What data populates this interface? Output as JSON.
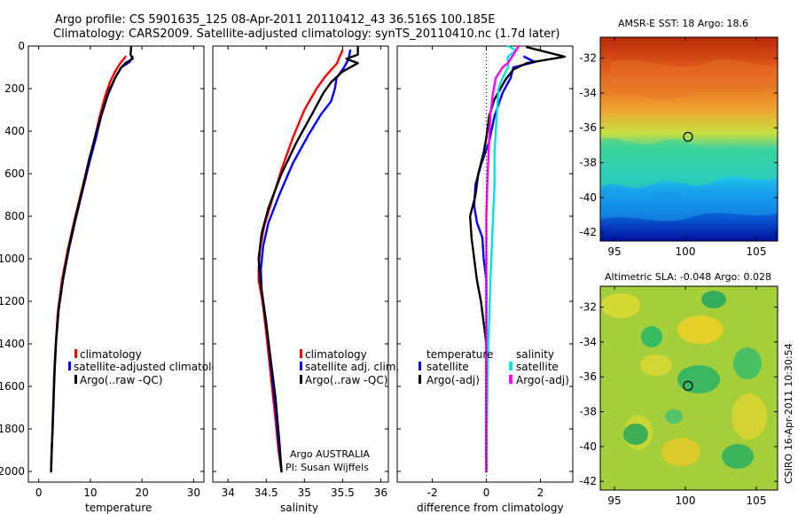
{
  "header": {
    "line1": "Argo profile: CS 5901635_125 08-Apr-2011 20110412_43 36.516S 100.185E",
    "line2": "Climatology: CARS2009. Satellite-adjusted climatology: synTS_20110410.nc (1.7d later)"
  },
  "credit": {
    "text": "CSIRO 16-Apr-2011 10:30:54"
  },
  "colors": {
    "climatology": "#ff0000",
    "satellite": "#0000ff",
    "argo": "#000000",
    "sal_satellite": "#00e5e5",
    "sal_argo": "#ff00ff"
  },
  "chart_data": [
    {
      "type": "line",
      "xlabel": "temperature",
      "xlim": [
        -2,
        32
      ],
      "ylim": [
        0,
        2050
      ],
      "y_reversed": true,
      "xticks": [
        0,
        10,
        20,
        30
      ],
      "yticks": [
        0,
        200,
        400,
        600,
        800,
        1000,
        1200,
        1400,
        1600,
        1800,
        2000
      ],
      "legend": [
        "climatology",
        "satellite-adjusted climatology",
        "Argo(..raw -QC)"
      ],
      "series": [
        {
          "name": "climatology",
          "color": "#ff0000",
          "points": [
            [
              16.8,
              50
            ],
            [
              15.8,
              80
            ],
            [
              14.8,
              120
            ],
            [
              13.8,
              170
            ],
            [
              12.8,
              240
            ],
            [
              11.8,
              330
            ],
            [
              10.8,
              440
            ],
            [
              9.5,
              560
            ],
            [
              8.3,
              680
            ],
            [
              6.9,
              820
            ],
            [
              5.6,
              960
            ],
            [
              4.5,
              1100
            ],
            [
              3.7,
              1250
            ],
            [
              3.3,
              1400
            ],
            [
              3.0,
              1550
            ],
            [
              2.8,
              1700
            ],
            [
              2.6,
              1850
            ],
            [
              2.4,
              2000
            ]
          ]
        },
        {
          "name": "satellite-adjusted climatology",
          "color": "#0000ff",
          "points": [
            [
              18.2,
              50
            ],
            [
              17.6,
              75
            ],
            [
              16.0,
              100
            ],
            [
              14.8,
              150
            ],
            [
              13.4,
              230
            ],
            [
              12.1,
              330
            ],
            [
              11.0,
              440
            ],
            [
              9.7,
              560
            ],
            [
              8.5,
              680
            ],
            [
              7.1,
              820
            ],
            [
              5.8,
              960
            ],
            [
              4.7,
              1100
            ],
            [
              3.8,
              1250
            ],
            [
              3.3,
              1400
            ],
            [
              3.0,
              1550
            ],
            [
              2.8,
              1700
            ],
            [
              2.6,
              1850
            ],
            [
              2.4,
              2000
            ]
          ]
        },
        {
          "name": "Argo(..raw -QC)",
          "color": "#000000",
          "points": [
            [
              17.9,
              5
            ],
            [
              17.8,
              40
            ],
            [
              18.2,
              60
            ],
            [
              16.8,
              80
            ],
            [
              16.0,
              100
            ],
            [
              15.0,
              140
            ],
            [
              13.6,
              210
            ],
            [
              12.4,
              300
            ],
            [
              11.1,
              410
            ],
            [
              9.8,
              530
            ],
            [
              8.6,
              660
            ],
            [
              7.2,
              800
            ],
            [
              5.9,
              940
            ],
            [
              4.8,
              1080
            ],
            [
              3.9,
              1230
            ],
            [
              3.4,
              1380
            ],
            [
              3.1,
              1520
            ],
            [
              2.9,
              1660
            ],
            [
              2.7,
              1800
            ],
            [
              2.5,
              1900
            ],
            [
              2.4,
              2000
            ]
          ]
        }
      ]
    },
    {
      "type": "line",
      "xlabel": "salinity",
      "xlim": [
        33.8,
        36.1
      ],
      "ylim": [
        0,
        2050
      ],
      "y_reversed": true,
      "xticks": [
        34,
        34.5,
        35,
        35.5,
        36
      ],
      "legend": [
        "climatology",
        "satellite adj. clim.",
        "Argo(..raw -QC)"
      ],
      "annotation": [
        "Argo AUSTRALIA",
        "PI: Susan Wijffels"
      ],
      "series": [
        {
          "name": "climatology",
          "color": "#ff0000",
          "points": [
            [
              35.5,
              20
            ],
            [
              35.45,
              60
            ],
            [
              35.43,
              80
            ],
            [
              35.28,
              140
            ],
            [
              35.16,
              200
            ],
            [
              35.0,
              300
            ],
            [
              34.85,
              430
            ],
            [
              34.7,
              580
            ],
            [
              34.58,
              720
            ],
            [
              34.47,
              850
            ],
            [
              34.42,
              950
            ],
            [
              34.4,
              1050
            ],
            [
              34.4,
              1100
            ],
            [
              34.45,
              1200
            ],
            [
              34.5,
              1350
            ],
            [
              34.56,
              1550
            ],
            [
              34.62,
              1750
            ],
            [
              34.66,
              1900
            ],
            [
              34.7,
              2000
            ]
          ]
        },
        {
          "name": "satellite adj. clim.",
          "color": "#0000ff",
          "points": [
            [
              35.6,
              20
            ],
            [
              35.58,
              60
            ],
            [
              35.52,
              100
            ],
            [
              35.42,
              150
            ],
            [
              35.4,
              200
            ],
            [
              35.35,
              260
            ],
            [
              35.22,
              320
            ],
            [
              35.05,
              420
            ],
            [
              34.85,
              550
            ],
            [
              34.67,
              700
            ],
            [
              34.53,
              830
            ],
            [
              34.46,
              940
            ],
            [
              34.43,
              1050
            ],
            [
              34.44,
              1150
            ],
            [
              34.5,
              1300
            ],
            [
              34.56,
              1500
            ],
            [
              34.62,
              1700
            ],
            [
              34.67,
              1900
            ],
            [
              34.7,
              2000
            ]
          ]
        },
        {
          "name": "Argo(..raw -QC)",
          "color": "#000000",
          "points": [
            [
              35.7,
              5
            ],
            [
              35.7,
              40
            ],
            [
              35.55,
              60
            ],
            [
              35.7,
              80
            ],
            [
              35.5,
              120
            ],
            [
              35.35,
              170
            ],
            [
              35.25,
              220
            ],
            [
              35.1,
              320
            ],
            [
              34.9,
              450
            ],
            [
              34.7,
              600
            ],
            [
              34.53,
              760
            ],
            [
              34.44,
              880
            ],
            [
              34.4,
              1000
            ],
            [
              34.42,
              1100
            ],
            [
              34.48,
              1250
            ],
            [
              34.55,
              1450
            ],
            [
              34.62,
              1650
            ],
            [
              34.67,
              1850
            ],
            [
              34.7,
              2000
            ]
          ]
        }
      ]
    },
    {
      "type": "line",
      "xlabel": "difference from climatology",
      "xlim": [
        -3.3,
        3.2
      ],
      "ylim": [
        0,
        2050
      ],
      "y_reversed": true,
      "xticks": [
        -2,
        0,
        2
      ],
      "legend_title_left": "temperature",
      "legend_title_right": "salinity",
      "legend": [
        "satellite",
        "Argo(-adj)",
        "satellite",
        "Argo(-adj)"
      ],
      "series": [
        {
          "name": "satellite",
          "group": "temperature",
          "color": "#0000ff",
          "points": [
            [
              1.4,
              50
            ],
            [
              1.8,
              75
            ],
            [
              1.0,
              100
            ],
            [
              0.9,
              150
            ],
            [
              0.6,
              220
            ],
            [
              0.3,
              330
            ],
            [
              0.1,
              450
            ],
            [
              -0.2,
              560
            ],
            [
              -0.4,
              650
            ],
            [
              -0.45,
              750
            ],
            [
              -0.35,
              830
            ],
            [
              -0.15,
              900
            ],
            [
              -0.1,
              1000
            ],
            [
              0,
              1100
            ],
            [
              0,
              1300
            ],
            [
              0,
              1500
            ],
            [
              0,
              1800
            ],
            [
              0,
              2000
            ]
          ]
        },
        {
          "name": "Argo(-adj)",
          "group": "temperature",
          "color": "#000000",
          "points": [
            [
              1.5,
              5
            ],
            [
              2.9,
              50
            ],
            [
              1.5,
              80
            ],
            [
              1.0,
              110
            ],
            [
              0.7,
              160
            ],
            [
              0.3,
              250
            ],
            [
              0.1,
              330
            ],
            [
              0,
              430
            ],
            [
              -0.1,
              500
            ],
            [
              -0.3,
              600
            ],
            [
              -0.4,
              700
            ],
            [
              -0.6,
              800
            ],
            [
              -0.55,
              900
            ],
            [
              -0.45,
              1000
            ],
            [
              -0.35,
              1100
            ],
            [
              -0.2,
              1200
            ],
            [
              -0.1,
              1300
            ],
            [
              0,
              1400
            ],
            [
              0,
              1600
            ],
            [
              0,
              1800
            ],
            [
              0,
              2000
            ]
          ]
        },
        {
          "name": "satellite",
          "group": "salinity",
          "color": "#00e5e5",
          "points": [
            [
              0.8,
              0
            ],
            [
              1.1,
              20
            ],
            [
              0.8,
              50
            ],
            [
              0.8,
              100
            ],
            [
              0.6,
              150
            ],
            [
              0.45,
              200
            ],
            [
              0.4,
              300
            ],
            [
              0.35,
              400
            ],
            [
              0.3,
              500
            ],
            [
              0.3,
              650
            ],
            [
              0.25,
              800
            ],
            [
              0.2,
              950
            ],
            [
              0.15,
              1100
            ],
            [
              0.1,
              1300
            ],
            [
              0.05,
              1500
            ],
            [
              0.02,
              1800
            ],
            [
              0,
              2000
            ]
          ]
        },
        {
          "name": "Argo(-adj)",
          "group": "salinity",
          "color": "#ff00ff",
          "points": [
            [
              1.2,
              0
            ],
            [
              1.0,
              40
            ],
            [
              0.8,
              80
            ],
            [
              0.6,
              100
            ],
            [
              0.35,
              150
            ],
            [
              0.25,
              220
            ],
            [
              0.15,
              320
            ],
            [
              0.1,
              450
            ],
            [
              0.05,
              600
            ],
            [
              0,
              800
            ],
            [
              0,
              1000
            ],
            [
              0,
              1300
            ],
            [
              0,
              1600
            ],
            [
              0,
              2000
            ]
          ]
        }
      ]
    },
    {
      "type": "heatmap",
      "title": "AMSR-E SST: 18 Argo: 18.6",
      "xlim": [
        94,
        106.5
      ],
      "ylim": [
        -42.5,
        -30.8
      ],
      "xticks": [
        95,
        100,
        105
      ],
      "yticks": [
        -32,
        -34,
        -36,
        -38,
        -40,
        -42
      ],
      "marker": [
        100.185,
        -36.516
      ]
    },
    {
      "type": "heatmap",
      "title": "Altimetric SLA: -0.048 Argo: 0.028",
      "xlim": [
        94,
        106.5
      ],
      "ylim": [
        -42.5,
        -30.8
      ],
      "xticks": [
        95,
        100,
        105
      ],
      "yticks": [
        -32,
        -34,
        -36,
        -38,
        -40,
        -42
      ],
      "marker": [
        100.185,
        -36.516
      ]
    }
  ]
}
